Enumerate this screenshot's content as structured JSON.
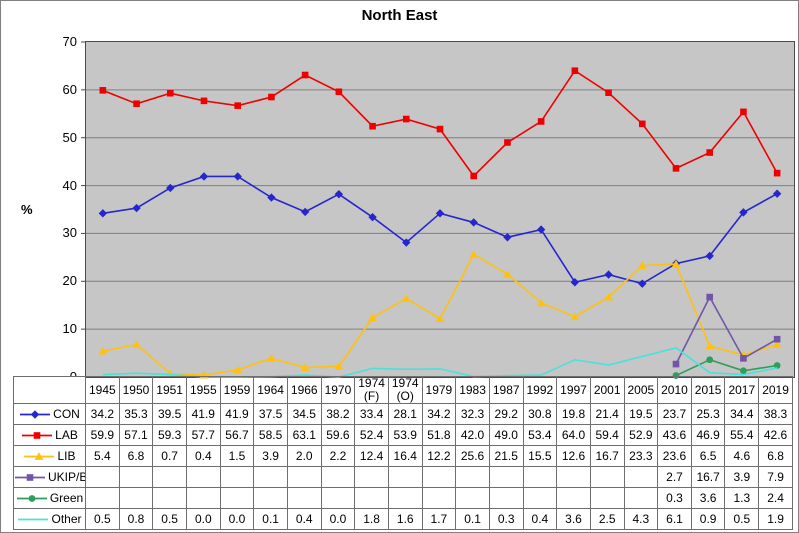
{
  "title": "North East",
  "colors": {
    "plot_background": "#C6C6C6",
    "gridline": "#7F7F7F",
    "axis_border": "#4a4a4a",
    "con": "#2626CE",
    "lab": "#EE0000",
    "lib": "#FFC110",
    "ukip_br": "#7055A8",
    "green": "#2E9E5B",
    "other": "#47E2DA"
  },
  "y_axis": {
    "label": "%",
    "tick_labels": [
      "70",
      "60",
      "50",
      "40",
      "30",
      "20",
      "10",
      "0"
    ]
  },
  "chart_data": {
    "type": "line",
    "title": "North East",
    "xlabel": "",
    "ylabel": "%",
    "ylim": [
      0,
      70
    ],
    "grid": true,
    "legend_position": "table-left",
    "categories": [
      "1945",
      "1950",
      "1951",
      "1955",
      "1959",
      "1964",
      "1966",
      "1970",
      "1974 (F)",
      "1974 (O)",
      "1979",
      "1983",
      "1987",
      "1992",
      "1997",
      "2001",
      "2005",
      "2010",
      "2015",
      "2017",
      "2019"
    ],
    "series": [
      {
        "name": "CON",
        "color": "#2626CE",
        "marker": "diamond",
        "values": [
          34.2,
          35.3,
          39.5,
          41.9,
          41.9,
          37.5,
          34.5,
          38.2,
          33.4,
          28.1,
          34.2,
          32.3,
          29.2,
          30.8,
          19.8,
          21.4,
          19.5,
          23.7,
          25.3,
          34.4,
          38.3
        ]
      },
      {
        "name": "LAB",
        "color": "#EE0000",
        "marker": "square",
        "values": [
          59.9,
          57.1,
          59.3,
          57.7,
          56.7,
          58.5,
          63.1,
          59.6,
          52.4,
          53.9,
          51.8,
          42.0,
          49.0,
          53.4,
          64.0,
          59.4,
          52.9,
          43.6,
          46.9,
          55.4,
          42.6
        ]
      },
      {
        "name": "LIB",
        "color": "#FFC110",
        "marker": "triangle",
        "values": [
          5.4,
          6.8,
          0.7,
          0.4,
          1.5,
          3.9,
          2.0,
          2.2,
          12.4,
          16.4,
          12.2,
          25.6,
          21.5,
          15.5,
          12.6,
          16.7,
          23.3,
          23.6,
          6.5,
          4.6,
          6.8
        ]
      },
      {
        "name": "UKIP/Br",
        "color": "#7055A8",
        "marker": "square",
        "values": [
          null,
          null,
          null,
          null,
          null,
          null,
          null,
          null,
          null,
          null,
          null,
          null,
          null,
          null,
          null,
          null,
          null,
          2.7,
          16.7,
          3.9,
          7.9
        ]
      },
      {
        "name": "Green",
        "color": "#2E9E5B",
        "marker": "circle",
        "values": [
          null,
          null,
          null,
          null,
          null,
          null,
          null,
          null,
          null,
          null,
          null,
          null,
          null,
          null,
          null,
          null,
          null,
          0.3,
          3.6,
          1.3,
          2.4
        ]
      },
      {
        "name": "Other",
        "color": "#47E2DA",
        "marker": "none",
        "values": [
          0.5,
          0.8,
          0.5,
          0.0,
          0.0,
          0.1,
          0.4,
          0.0,
          1.8,
          1.6,
          1.7,
          0.1,
          0.3,
          0.4,
          3.6,
          2.5,
          4.3,
          6.1,
          0.9,
          0.5,
          1.9
        ]
      }
    ]
  }
}
